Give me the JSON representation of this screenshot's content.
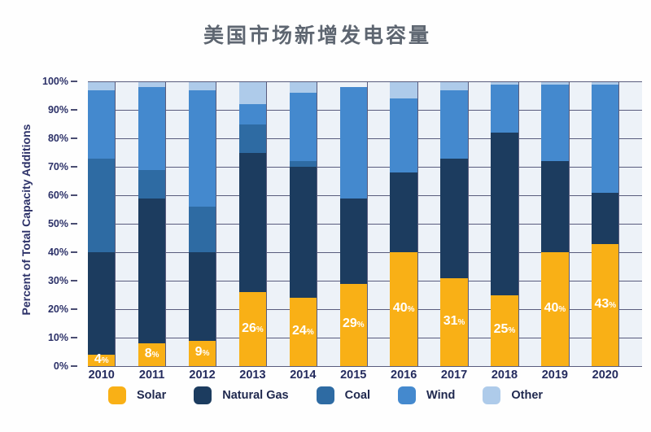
{
  "title": "美国市场新增发电容量",
  "chart_data": {
    "type": "bar",
    "subtype": "stacked-percent",
    "title": "美国市场新增发电容量",
    "ylabel": "Percent of Total Capacity Additions",
    "xlabel": "",
    "ylim": [
      0,
      100
    ],
    "ytick_labels": [
      "100%",
      "90%",
      "80%",
      "70%",
      "60%",
      "50%",
      "40%",
      "30%",
      "20%",
      "10%",
      "0%"
    ],
    "grid": "both",
    "legend_position": "bottom",
    "categories": [
      "2010",
      "2011",
      "2012",
      "2013",
      "2014",
      "2015",
      "2016",
      "2017",
      "2018",
      "2019",
      "2020"
    ],
    "series": [
      {
        "name": "Solar",
        "color": "#f9b016",
        "values": [
          4,
          8,
          9,
          26,
          24,
          29,
          40,
          31,
          25,
          40,
          43
        ]
      },
      {
        "name": "Natural Gas",
        "color": "#1c3c5f",
        "values": [
          36,
          51,
          31,
          49,
          46,
          30,
          28,
          42,
          57,
          32,
          18
        ]
      },
      {
        "name": "Coal",
        "color": "#2e6ba3",
        "values": [
          33,
          10,
          16,
          10,
          2,
          0,
          0,
          0,
          0,
          0,
          0
        ]
      },
      {
        "name": "Wind",
        "color": "#4489ce",
        "values": [
          24,
          29,
          41,
          7,
          24,
          39,
          26,
          24,
          17,
          27,
          38
        ]
      },
      {
        "name": "Other",
        "color": "#aecbea",
        "values": [
          3,
          2,
          3,
          8,
          4,
          0,
          6,
          3,
          1,
          1,
          1
        ]
      }
    ],
    "bar_labels": {
      "series": "Solar",
      "values": [
        "4%",
        "8%",
        "9%",
        "26%",
        "24%",
        "29%",
        "40%",
        "31%",
        "25%",
        "40%",
        "43%"
      ]
    },
    "colors": {
      "plot_background": "#edf2f8",
      "gridline": "#595c7d",
      "axis_text": "#2c3168",
      "title_text": "#5e6671",
      "legend_text": "#20294f",
      "bar_label_text": "#ffffff"
    }
  }
}
